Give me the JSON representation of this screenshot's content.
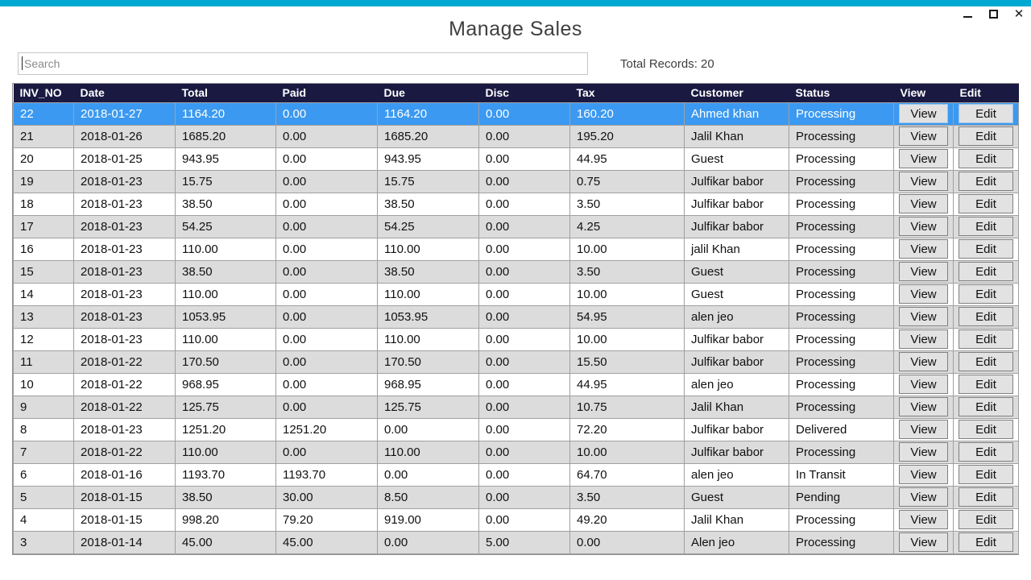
{
  "window": {
    "accent_color": "#00a9d2",
    "close_glyph": "✕"
  },
  "header": {
    "title": "Manage Sales"
  },
  "search": {
    "placeholder": "Search",
    "value": ""
  },
  "summary": {
    "total_records_label": "Total Records: 20"
  },
  "colors": {
    "header_bg": "#191942",
    "selected_row_bg": "#3b99f1",
    "alt_row_bg": "#dcdcdc"
  },
  "table": {
    "view_label": "View",
    "edit_label": "Edit",
    "selected_row_index": 0,
    "columns": [
      {
        "key": "inv_no",
        "label": "INV_NO"
      },
      {
        "key": "date",
        "label": "Date"
      },
      {
        "key": "total",
        "label": "Total"
      },
      {
        "key": "paid",
        "label": "Paid"
      },
      {
        "key": "due",
        "label": "Due"
      },
      {
        "key": "disc",
        "label": "Disc"
      },
      {
        "key": "tax",
        "label": "Tax"
      },
      {
        "key": "customer",
        "label": "Customer"
      },
      {
        "key": "status",
        "label": "Status"
      },
      {
        "key": "view",
        "label": "View"
      },
      {
        "key": "edit",
        "label": "Edit"
      }
    ],
    "rows": [
      {
        "inv_no": "22",
        "date": "2018-01-27",
        "total": "1164.20",
        "paid": "0.00",
        "due": "1164.20",
        "disc": "0.00",
        "tax": "160.20",
        "customer": "Ahmed khan",
        "status": "Processing"
      },
      {
        "inv_no": "21",
        "date": "2018-01-26",
        "total": "1685.20",
        "paid": "0.00",
        "due": "1685.20",
        "disc": "0.00",
        "tax": "195.20",
        "customer": "Jalil Khan",
        "status": "Processing"
      },
      {
        "inv_no": "20",
        "date": "2018-01-25",
        "total": "943.95",
        "paid": "0.00",
        "due": "943.95",
        "disc": "0.00",
        "tax": "44.95",
        "customer": "Guest",
        "status": "Processing"
      },
      {
        "inv_no": "19",
        "date": "2018-01-23",
        "total": "15.75",
        "paid": "0.00",
        "due": "15.75",
        "disc": "0.00",
        "tax": "0.75",
        "customer": "Julfikar babor",
        "status": "Processing"
      },
      {
        "inv_no": "18",
        "date": "2018-01-23",
        "total": "38.50",
        "paid": "0.00",
        "due": "38.50",
        "disc": "0.00",
        "tax": "3.50",
        "customer": "Julfikar babor",
        "status": "Processing"
      },
      {
        "inv_no": "17",
        "date": "2018-01-23",
        "total": "54.25",
        "paid": "0.00",
        "due": "54.25",
        "disc": "0.00",
        "tax": "4.25",
        "customer": "Julfikar babor",
        "status": "Processing"
      },
      {
        "inv_no": "16",
        "date": "2018-01-23",
        "total": "110.00",
        "paid": "0.00",
        "due": "110.00",
        "disc": "0.00",
        "tax": "10.00",
        "customer": "jalil Khan",
        "status": "Processing"
      },
      {
        "inv_no": "15",
        "date": "2018-01-23",
        "total": "38.50",
        "paid": "0.00",
        "due": "38.50",
        "disc": "0.00",
        "tax": "3.50",
        "customer": "Guest",
        "status": "Processing"
      },
      {
        "inv_no": "14",
        "date": "2018-01-23",
        "total": "110.00",
        "paid": "0.00",
        "due": "110.00",
        "disc": "0.00",
        "tax": "10.00",
        "customer": "Guest",
        "status": "Processing"
      },
      {
        "inv_no": "13",
        "date": "2018-01-23",
        "total": "1053.95",
        "paid": "0.00",
        "due": "1053.95",
        "disc": "0.00",
        "tax": "54.95",
        "customer": "alen jeo",
        "status": "Processing"
      },
      {
        "inv_no": "12",
        "date": "2018-01-23",
        "total": "110.00",
        "paid": "0.00",
        "due": "110.00",
        "disc": "0.00",
        "tax": "10.00",
        "customer": "Julfikar babor",
        "status": "Processing"
      },
      {
        "inv_no": "11",
        "date": "2018-01-22",
        "total": "170.50",
        "paid": "0.00",
        "due": "170.50",
        "disc": "0.00",
        "tax": "15.50",
        "customer": "Julfikar babor",
        "status": "Processing"
      },
      {
        "inv_no": "10",
        "date": "2018-01-22",
        "total": "968.95",
        "paid": "0.00",
        "due": "968.95",
        "disc": "0.00",
        "tax": "44.95",
        "customer": "alen jeo",
        "status": "Processing"
      },
      {
        "inv_no": "9",
        "date": "2018-01-22",
        "total": "125.75",
        "paid": "0.00",
        "due": "125.75",
        "disc": "0.00",
        "tax": "10.75",
        "customer": "Jalil Khan",
        "status": "Processing"
      },
      {
        "inv_no": "8",
        "date": "2018-01-23",
        "total": "1251.20",
        "paid": "1251.20",
        "due": "0.00",
        "disc": "0.00",
        "tax": "72.20",
        "customer": "Julfikar babor",
        "status": "Delivered"
      },
      {
        "inv_no": "7",
        "date": "2018-01-22",
        "total": "110.00",
        "paid": "0.00",
        "due": "110.00",
        "disc": "0.00",
        "tax": "10.00",
        "customer": "Julfikar babor",
        "status": "Processing"
      },
      {
        "inv_no": "6",
        "date": "2018-01-16",
        "total": "1193.70",
        "paid": "1193.70",
        "due": "0.00",
        "disc": "0.00",
        "tax": "64.70",
        "customer": "alen jeo",
        "status": "In Transit"
      },
      {
        "inv_no": "5",
        "date": "2018-01-15",
        "total": "38.50",
        "paid": "30.00",
        "due": "8.50",
        "disc": "0.00",
        "tax": "3.50",
        "customer": "Guest",
        "status": "Pending"
      },
      {
        "inv_no": "4",
        "date": "2018-01-15",
        "total": "998.20",
        "paid": "79.20",
        "due": "919.00",
        "disc": "0.00",
        "tax": "49.20",
        "customer": "Jalil Khan",
        "status": "Processing"
      },
      {
        "inv_no": "3",
        "date": "2018-01-14",
        "total": "45.00",
        "paid": "45.00",
        "due": "0.00",
        "disc": "5.00",
        "tax": "0.00",
        "customer": "Alen jeo",
        "status": "Processing"
      }
    ]
  }
}
